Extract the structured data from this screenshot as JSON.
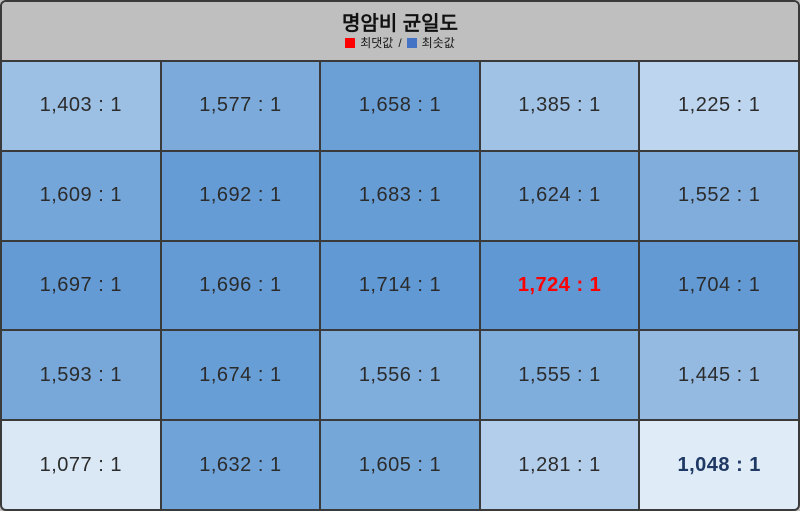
{
  "title": "명암비 균일도",
  "legend": {
    "max_label": "최댓값",
    "separator": "/",
    "min_label": "최솟값",
    "max_swatch_color": "#ff0000",
    "min_swatch_color": "#4472c4"
  },
  "chart_data": {
    "type": "heatmap",
    "title": "명암비 균일도",
    "rows": 5,
    "cols": 5,
    "values": [
      [
        1403,
        1577,
        1658,
        1385,
        1225
      ],
      [
        1609,
        1692,
        1683,
        1624,
        1552
      ],
      [
        1697,
        1696,
        1714,
        1724,
        1704
      ],
      [
        1593,
        1674,
        1556,
        1555,
        1445
      ],
      [
        1077,
        1632,
        1605,
        1281,
        1048
      ]
    ],
    "value_suffix": " : 1",
    "max_value": 1724,
    "max_cell": {
      "row": 2,
      "col": 3
    },
    "min_value": 1048,
    "min_cell": {
      "row": 4,
      "col": 4
    },
    "color_scale": {
      "min_color": "#dfebf7",
      "max_color": "#5f98d3"
    },
    "max_text_color": "#ff0000",
    "min_text_color": "#1f3864",
    "cell_text_color": "#2b2b2b"
  },
  "colors": {
    "page_bg": "#bfbfbf",
    "header_bg": "#bfbfbf",
    "grid_border": "#3a3a3a"
  }
}
